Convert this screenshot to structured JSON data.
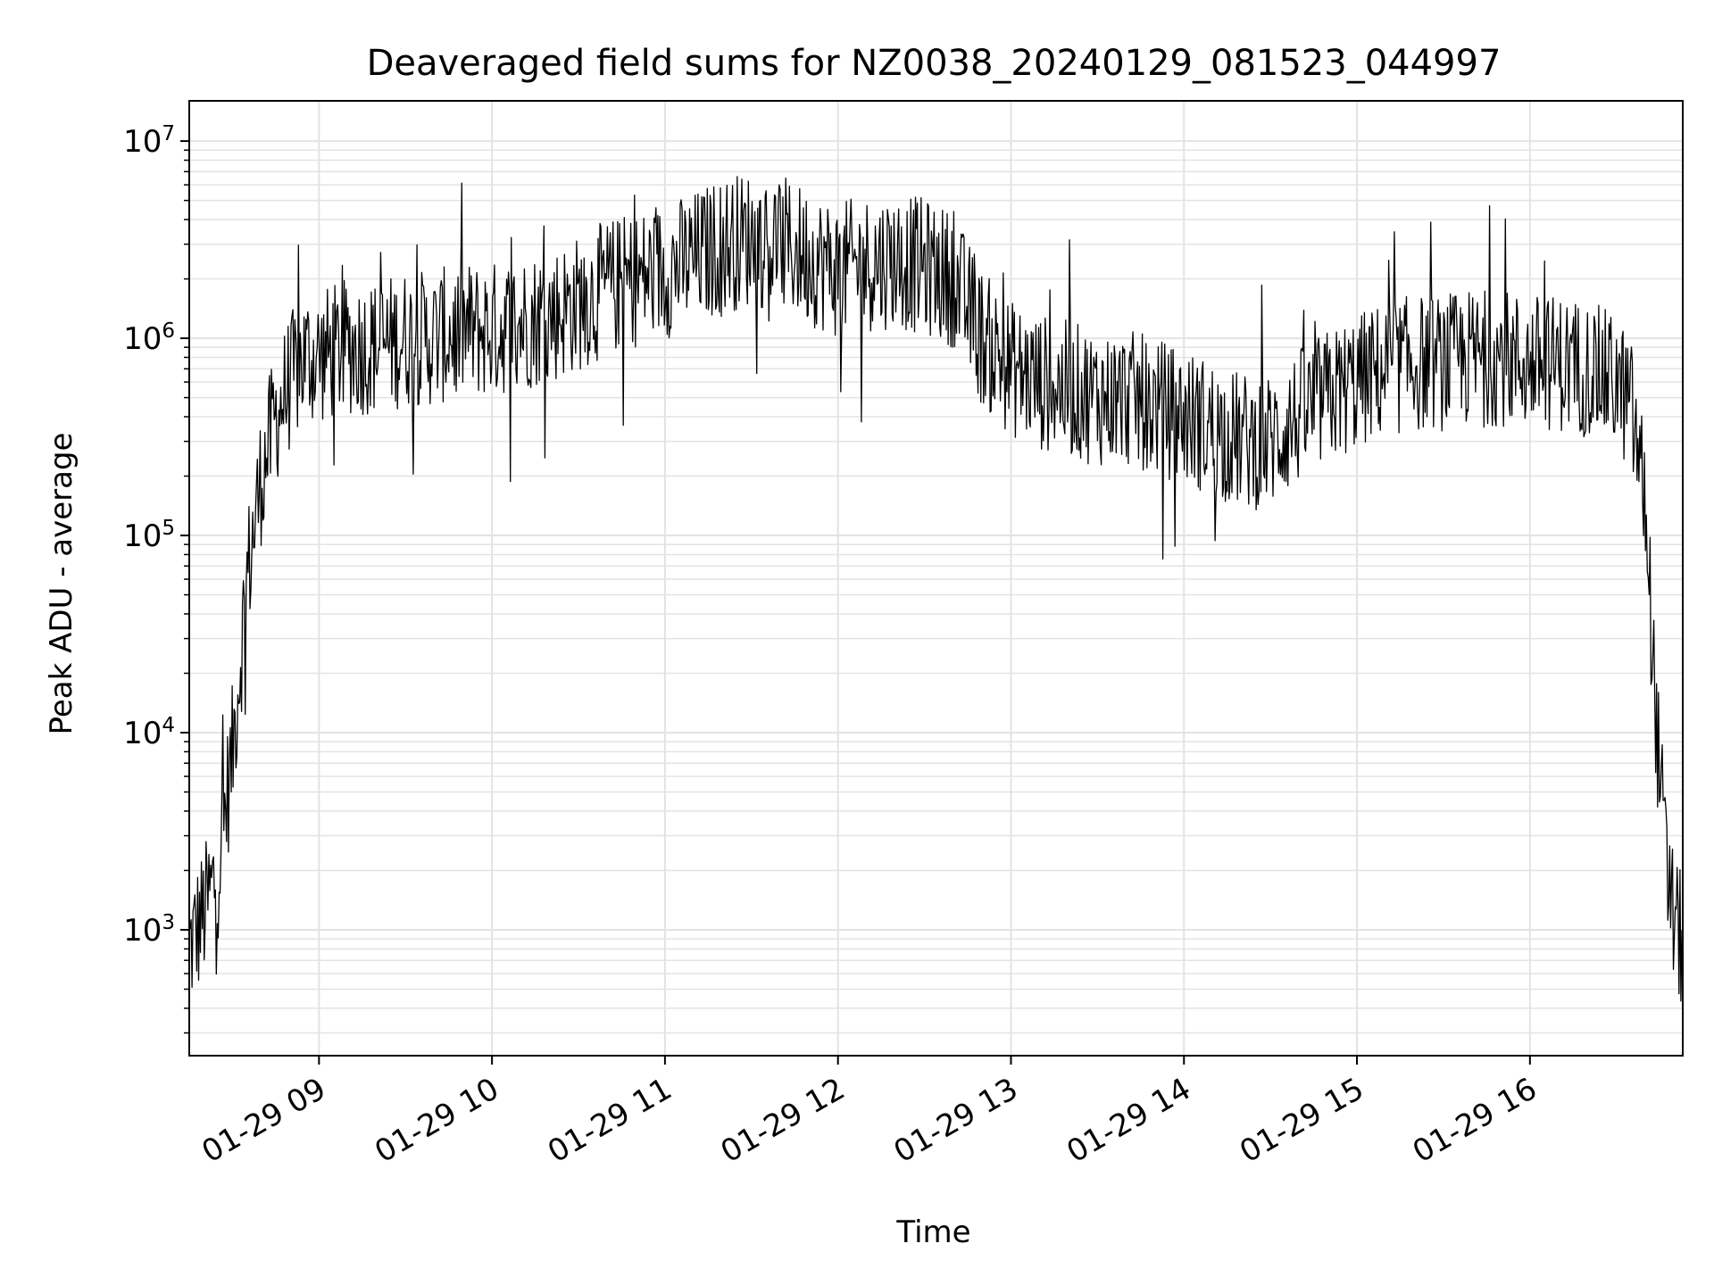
{
  "chart_data": {
    "type": "line",
    "title": "Deaveraged field sums for NZ0038_20240129_081523_044997",
    "xlabel": "Time",
    "ylabel": "Peak ADU - average",
    "yscale": "log",
    "grid": true,
    "grid_minor": true,
    "legend": "none",
    "line_color": "#000000",
    "grid_color": "#e3e3e3",
    "xlim": [
      "2024-01-29 08:15",
      "2024-01-29 16:53"
    ],
    "ylim": [
      230,
      16000000
    ],
    "x_ticks": [
      {
        "time": "2024-01-29 09:00",
        "label": "01-29 09"
      },
      {
        "time": "2024-01-29 10:00",
        "label": "01-29 10"
      },
      {
        "time": "2024-01-29 11:00",
        "label": "01-29 11"
      },
      {
        "time": "2024-01-29 12:00",
        "label": "01-29 12"
      },
      {
        "time": "2024-01-29 13:00",
        "label": "01-29 13"
      },
      {
        "time": "2024-01-29 14:00",
        "label": "01-29 14"
      },
      {
        "time": "2024-01-29 15:00",
        "label": "01-29 15"
      },
      {
        "time": "2024-01-29 16:00",
        "label": "01-29 16"
      }
    ],
    "y_ticks": [
      {
        "value": 1000,
        "base": "10",
        "exp": "3"
      },
      {
        "value": 10000,
        "base": "10",
        "exp": "4"
      },
      {
        "value": 100000,
        "base": "10",
        "exp": "5"
      },
      {
        "value": 1000000,
        "base": "10",
        "exp": "6"
      },
      {
        "value": 10000000,
        "base": "10",
        "exp": "7"
      }
    ],
    "series": [
      {
        "x": [
          "2024-01-29 08:15",
          "2024-01-29 08:20",
          "2024-01-29 08:25",
          "2024-01-29 08:30",
          "2024-01-29 08:35",
          "2024-01-29 08:40",
          "2024-01-29 08:45",
          "2024-01-29 08:50",
          "2024-01-29 08:55",
          "2024-01-29 09:00",
          "2024-01-29 09:10",
          "2024-01-29 09:20",
          "2024-01-29 09:30",
          "2024-01-29 09:40",
          "2024-01-29 09:50",
          "2024-01-29 10:00",
          "2024-01-29 10:10",
          "2024-01-29 10:20",
          "2024-01-29 10:30",
          "2024-01-29 10:40",
          "2024-01-29 10:50",
          "2024-01-29 11:00",
          "2024-01-29 11:10",
          "2024-01-29 11:20",
          "2024-01-29 11:30",
          "2024-01-29 11:40",
          "2024-01-29 11:50",
          "2024-01-29 12:00",
          "2024-01-29 12:10",
          "2024-01-29 12:20",
          "2024-01-29 12:30",
          "2024-01-29 12:40",
          "2024-01-29 12:50",
          "2024-01-29 13:00",
          "2024-01-29 13:10",
          "2024-01-29 13:20",
          "2024-01-29 13:30",
          "2024-01-29 13:40",
          "2024-01-29 13:50",
          "2024-01-29 14:00",
          "2024-01-29 14:10",
          "2024-01-29 14:20",
          "2024-01-29 14:30",
          "2024-01-29 14:40",
          "2024-01-29 14:50",
          "2024-01-29 15:00",
          "2024-01-29 15:10",
          "2024-01-29 15:20",
          "2024-01-29 15:30",
          "2024-01-29 15:40",
          "2024-01-29 15:50",
          "2024-01-29 16:00",
          "2024-01-29 16:10",
          "2024-01-29 16:20",
          "2024-01-29 16:30",
          "2024-01-29 16:35",
          "2024-01-29 16:40",
          "2024-01-29 16:44",
          "2024-01-29 16:48",
          "2024-01-29 16:53"
        ],
        "y": [
          800,
          1200,
          2000,
          8000,
          60000,
          200000,
          400000,
          600000,
          800000,
          800000,
          900000,
          900000,
          1000000,
          1000000,
          1100000,
          1100000,
          1200000,
          1300000,
          1500000,
          1800000,
          2000000,
          2200000,
          2500000,
          3000000,
          3200000,
          3000000,
          2600000,
          2200000,
          2400000,
          2500000,
          2300000,
          2000000,
          1000000,
          700000,
          600000,
          550000,
          500000,
          500000,
          450000,
          400000,
          350000,
          300000,
          300000,
          400000,
          500000,
          600000,
          700000,
          750000,
          750000,
          800000,
          800000,
          750000,
          750000,
          700000,
          600000,
          450000,
          150000,
          10000,
          1500,
          800
        ]
      }
    ]
  }
}
